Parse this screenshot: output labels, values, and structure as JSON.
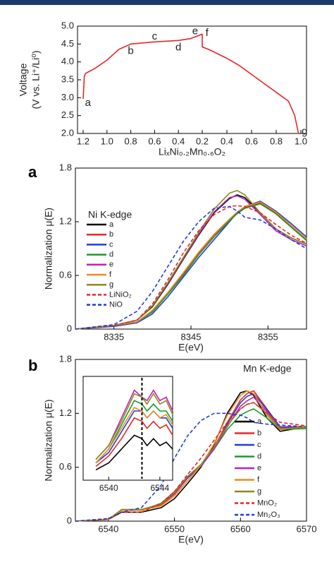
{
  "chart_data": [
    {
      "type": "line",
      "y_label": [
        "Voltage",
        "(V vs. Li⁺/Li⁰)"
      ],
      "x_label": "LiₓNi₀.₂Mn₀.₆O₂",
      "ylim": [
        2,
        5
      ],
      "yticks": [
        {
          "value": 2,
          "label": "2.0"
        },
        2.5,
        {
          "value": 3,
          "label": "3.0"
        },
        3.5,
        {
          "value": 4,
          "label": "4.0"
        },
        4.5,
        {
          "value": 5,
          "label": "5.0"
        }
      ],
      "xlim": [
        1.2,
        0.2
      ],
      "xticks": [
        1.2,
        {
          "value": 1,
          "label": "1.0"
        },
        0.8,
        0.6,
        0.4,
        0.2
      ],
      "x2lim": [
        0.2,
        1
      ],
      "x2ticks": [
        0.4,
        0.6,
        0.8,
        {
          "value": 1,
          "label": "1.0"
        }
      ],
      "series": [
        {
          "color": "#e8252a",
          "x": [
            1.2,
            1.19,
            1.18,
            1.1,
            1.0,
            0.9,
            0.8,
            0.7,
            0.6,
            0.5,
            0.4,
            0.3,
            0.22,
            0.2
          ],
          "values": [
            2.97,
            3.6,
            3.68,
            3.82,
            4.05,
            4.35,
            4.5,
            4.53,
            4.56,
            4.58,
            4.6,
            4.65,
            4.75,
            4.78
          ]
        },
        {
          "color": "#e8252a",
          "axis": "x2",
          "x": [
            0.2,
            0.2,
            0.25,
            0.3,
            0.4,
            0.5,
            0.6,
            0.7,
            0.8,
            0.9,
            0.95,
            0.98
          ],
          "values": [
            4.78,
            4.42,
            4.35,
            4.27,
            4.1,
            3.9,
            3.65,
            3.4,
            3.15,
            2.9,
            2.5,
            2.0
          ]
        }
      ],
      "annotations": [
        {
          "text": "a",
          "x": 1.16,
          "y": 2.85
        },
        {
          "text": "b",
          "x": 0.8,
          "y": 4.3
        },
        {
          "text": "c",
          "x": 0.6,
          "y": 4.7
        },
        {
          "text": "d",
          "x": 0.4,
          "y": 4.4
        },
        {
          "text": "e",
          "x": 0.26,
          "y": 4.85
        },
        {
          "text": "f",
          "x": 0.16,
          "y": 4.8
        },
        {
          "text": "g",
          "x": 1.03,
          "y": 2.05,
          "axis": "x2"
        }
      ]
    },
    {
      "type": "line",
      "panel_label": "a",
      "title": "Ni K-edge",
      "y_label": "Normalization μ(E)",
      "x_label": "E(eV)",
      "xlim": [
        8330,
        8360
      ],
      "xticks": [
        8335,
        8345,
        8355
      ],
      "ylim": [
        0,
        1.8
      ],
      "yticks": [
        0,
        0.6,
        1.2,
        1.8
      ],
      "x": [
        8330,
        8335,
        8338,
        8340,
        8342,
        8344,
        8346,
        8348,
        8350,
        8351,
        8352,
        8354,
        8356,
        8358,
        8360
      ],
      "series": [
        {
          "name": "a",
          "color": "#000000",
          "values": [
            0,
            0.04,
            0.1,
            0.25,
            0.5,
            0.78,
            1.05,
            1.3,
            1.46,
            1.5,
            1.47,
            1.3,
            1.12,
            1.02,
            0.95
          ]
        },
        {
          "name": "b",
          "color": "#e8252a",
          "values": [
            0,
            0.04,
            0.08,
            0.2,
            0.4,
            0.62,
            0.85,
            1.05,
            1.22,
            1.3,
            1.36,
            1.41,
            1.3,
            1.15,
            1.0
          ]
        },
        {
          "name": "c",
          "color": "#1f3fd6",
          "values": [
            0,
            0.03,
            0.07,
            0.17,
            0.36,
            0.58,
            0.8,
            1.0,
            1.2,
            1.3,
            1.37,
            1.43,
            1.32,
            1.18,
            1.03
          ]
        },
        {
          "name": "d",
          "color": "#1a9a2a",
          "values": [
            0,
            0.04,
            0.08,
            0.19,
            0.39,
            0.6,
            0.83,
            1.03,
            1.21,
            1.29,
            1.35,
            1.4,
            1.29,
            1.14,
            0.99
          ]
        },
        {
          "name": "e",
          "color": "#c21fbf",
          "values": [
            0,
            0.04,
            0.1,
            0.26,
            0.51,
            0.79,
            1.06,
            1.31,
            1.47,
            1.49,
            1.45,
            1.28,
            1.1,
            1.0,
            0.93
          ]
        },
        {
          "name": "f",
          "color": "#f08a1c",
          "values": [
            0,
            0.04,
            0.08,
            0.21,
            0.41,
            0.63,
            0.86,
            1.06,
            1.23,
            1.31,
            1.37,
            1.42,
            1.31,
            1.16,
            1.01
          ]
        },
        {
          "name": "g",
          "color": "#8a8a1a",
          "values": [
            0,
            0.04,
            0.1,
            0.26,
            0.52,
            0.8,
            1.08,
            1.34,
            1.52,
            1.55,
            1.5,
            1.3,
            1.12,
            1.02,
            0.95
          ]
        },
        {
          "name": "LiNiO₂",
          "color": "#e8252a",
          "dashed": true,
          "values": [
            0,
            0.04,
            0.1,
            0.28,
            0.55,
            0.85,
            1.1,
            1.28,
            1.37,
            1.38,
            1.37,
            1.3,
            1.17,
            1.05,
            0.96
          ]
        },
        {
          "name": "NiO",
          "color": "#1f3fd6",
          "dashed": true,
          "values": [
            0,
            0.05,
            0.2,
            0.42,
            0.7,
            0.98,
            1.2,
            1.35,
            1.37,
            1.32,
            1.25,
            1.22,
            1.12,
            1.0,
            0.9
          ]
        }
      ]
    },
    {
      "type": "line",
      "panel_label": "b",
      "title": "Mn K-edge",
      "y_label": "Normalization μ(E)",
      "x_label": "E(eV)",
      "xlim": [
        6535,
        6570
      ],
      "xticks": [
        6540,
        6550,
        6560,
        6570
      ],
      "ylim": [
        0,
        1.8
      ],
      "yticks": [
        0,
        0.6,
        1.2,
        1.8
      ],
      "x": [
        6535,
        6540,
        6542,
        6545,
        6548,
        6550,
        6552,
        6554,
        6556,
        6558,
        6560,
        6561,
        6562,
        6564,
        6566,
        6570
      ],
      "series": [
        {
          "name": "a",
          "color": "#000000",
          "values": [
            0,
            0.02,
            0.1,
            0.1,
            0.15,
            0.25,
            0.42,
            0.6,
            0.85,
            1.2,
            1.43,
            1.45,
            1.4,
            1.15,
            1.0,
            1.05
          ]
        },
        {
          "name": "b",
          "color": "#e8252a",
          "values": [
            0,
            0.02,
            0.12,
            0.12,
            0.18,
            0.3,
            0.48,
            0.62,
            0.82,
            1.1,
            1.35,
            1.42,
            1.45,
            1.25,
            1.05,
            1.05
          ]
        },
        {
          "name": "c",
          "color": "#1f3fd6",
          "values": [
            0,
            0.02,
            0.12,
            0.12,
            0.19,
            0.31,
            0.48,
            0.61,
            0.8,
            1.08,
            1.32,
            1.39,
            1.42,
            1.24,
            1.05,
            1.04
          ]
        },
        {
          "name": "d",
          "color": "#1a9a2a",
          "values": [
            0,
            0.02,
            0.12,
            0.12,
            0.2,
            0.33,
            0.5,
            0.62,
            0.8,
            1.02,
            1.18,
            1.22,
            1.25,
            1.15,
            1.02,
            1.03
          ]
        },
        {
          "name": "e",
          "color": "#c21fbf",
          "values": [
            0,
            0.02,
            0.13,
            0.13,
            0.19,
            0.31,
            0.49,
            0.62,
            0.8,
            1.05,
            1.28,
            1.34,
            1.38,
            1.22,
            1.04,
            1.04
          ]
        },
        {
          "name": "f",
          "color": "#f08a1c",
          "values": [
            0,
            0.02,
            0.12,
            0.12,
            0.17,
            0.28,
            0.45,
            0.62,
            0.86,
            1.18,
            1.4,
            1.45,
            1.42,
            1.18,
            1.02,
            1.05
          ]
        },
        {
          "name": "g",
          "color": "#8a8a1a",
          "values": [
            0,
            0.02,
            0.13,
            0.13,
            0.19,
            0.32,
            0.5,
            0.63,
            0.82,
            1.06,
            1.25,
            1.3,
            1.32,
            1.2,
            1.03,
            1.04
          ]
        },
        {
          "name": "MnO₂",
          "color": "#e8252a",
          "dashed": true,
          "values": [
            0,
            0.02,
            0.1,
            0.1,
            0.2,
            0.33,
            0.52,
            0.7,
            0.9,
            1.1,
            1.25,
            1.3,
            1.32,
            1.2,
            1.1,
            1.06
          ]
        },
        {
          "name": "Mn₂O₃",
          "color": "#1f3fd6",
          "dashed": true,
          "values": [
            0,
            0.03,
            0.1,
            0.15,
            0.4,
            0.7,
            0.95,
            1.12,
            1.2,
            1.2,
            1.18,
            1.15,
            1.1,
            1.08,
            1.07,
            1.05
          ]
        }
      ]
    },
    {
      "type": "line",
      "xlim": [
        6538,
        6545
      ],
      "xticks": [
        6540,
        6544
      ],
      "ylim": [
        0,
        0.3
      ],
      "vline": 6542.6,
      "x": [
        6539,
        6540,
        6541,
        6542,
        6542.6,
        6543,
        6543.5,
        6544,
        6544.5,
        6545
      ],
      "series": [
        {
          "color": "#000000",
          "values": [
            0.03,
            0.05,
            0.09,
            0.13,
            0.12,
            0.1,
            0.12,
            0.1,
            0.11,
            0.09
          ]
        },
        {
          "color": "#e8252a",
          "values": [
            0.04,
            0.07,
            0.12,
            0.18,
            0.17,
            0.15,
            0.17,
            0.15,
            0.16,
            0.13
          ]
        },
        {
          "color": "#1f3fd6",
          "values": [
            0.05,
            0.08,
            0.14,
            0.2,
            0.2,
            0.18,
            0.2,
            0.18,
            0.18,
            0.15
          ]
        },
        {
          "color": "#1a9a2a",
          "values": [
            0.05,
            0.09,
            0.16,
            0.23,
            0.22,
            0.2,
            0.22,
            0.2,
            0.2,
            0.17
          ]
        },
        {
          "color": "#c21fbf",
          "values": [
            0.06,
            0.1,
            0.18,
            0.26,
            0.24,
            0.23,
            0.26,
            0.23,
            0.24,
            0.2
          ]
        },
        {
          "color": "#f08a1c",
          "values": [
            0.05,
            0.09,
            0.15,
            0.21,
            0.2,
            0.18,
            0.2,
            0.18,
            0.19,
            0.16
          ]
        },
        {
          "color": "#8a8a1a",
          "values": [
            0.06,
            0.1,
            0.17,
            0.25,
            0.24,
            0.22,
            0.25,
            0.22,
            0.23,
            0.19
          ]
        }
      ]
    }
  ]
}
